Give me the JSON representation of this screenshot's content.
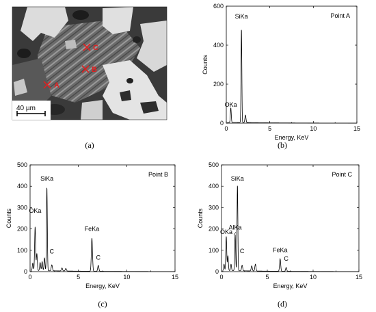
{
  "panel_labels": [
    "(a)",
    "(b)",
    "(c)",
    "(d)"
  ],
  "micrograph": {
    "points": [
      {
        "label": "A",
        "color": "#e02020"
      },
      {
        "label": "B",
        "color": "#e02020"
      },
      {
        "label": "C",
        "color": "#e02020"
      }
    ],
    "scale_bar_label": "40 µm"
  },
  "chart_data": [
    {
      "type": "line",
      "title": "",
      "annotation": "Point A",
      "xlabel": "Energy, KeV",
      "ylabel": "Counts",
      "xlim": [
        0,
        15
      ],
      "ylim": [
        0,
        600
      ],
      "xticks": [
        0,
        5,
        10,
        15
      ],
      "yticks": [
        0,
        200,
        400,
        600
      ],
      "grid": false,
      "color": "#000000",
      "peaks": [
        {
          "x": 0.52,
          "y": 75,
          "w": 0.05
        },
        {
          "x": 1.74,
          "y": 480,
          "w": 0.045
        },
        {
          "x": 2.2,
          "y": 38,
          "w": 0.06
        }
      ],
      "baseline": 4,
      "peak_labels": [
        {
          "text": "OKa",
          "x": 0.52,
          "y": 78
        },
        {
          "text": "SiKa",
          "x": 1.74,
          "y": 530
        }
      ]
    },
    {
      "type": "line",
      "title": "",
      "annotation": "Point B",
      "xlabel": "Energy, KeV",
      "ylabel": "Counts",
      "xlim": [
        0,
        15
      ],
      "ylim": [
        0,
        500
      ],
      "xticks": [
        0,
        5,
        10,
        15
      ],
      "yticks": [
        0,
        100,
        200,
        300,
        400,
        500
      ],
      "grid": false,
      "color": "#000000",
      "peaks": [
        {
          "x": 0.28,
          "y": 35,
          "w": 0.05
        },
        {
          "x": 0.52,
          "y": 205,
          "w": 0.05
        },
        {
          "x": 0.7,
          "y": 80,
          "w": 0.05
        },
        {
          "x": 1.04,
          "y": 38,
          "w": 0.05
        },
        {
          "x": 1.25,
          "y": 42,
          "w": 0.05
        },
        {
          "x": 1.49,
          "y": 60,
          "w": 0.05
        },
        {
          "x": 1.74,
          "y": 392,
          "w": 0.045
        },
        {
          "x": 2.25,
          "y": 28,
          "w": 0.06
        },
        {
          "x": 3.3,
          "y": 14,
          "w": 0.06
        },
        {
          "x": 3.7,
          "y": 12,
          "w": 0.06
        },
        {
          "x": 6.4,
          "y": 155,
          "w": 0.06
        },
        {
          "x": 7.06,
          "y": 28,
          "w": 0.06
        }
      ],
      "baseline": 5,
      "peak_labels": [
        {
          "text": "OKa",
          "x": 0.52,
          "y": 270
        },
        {
          "text": "SiKa",
          "x": 1.74,
          "y": 420
        },
        {
          "text": "FeKa",
          "x": 6.4,
          "y": 185
        },
        {
          "text": "C",
          "x": 2.25,
          "y": 78
        },
        {
          "text": "C",
          "x": 7.06,
          "y": 50
        }
      ]
    },
    {
      "type": "line",
      "title": "",
      "annotation": "Point C",
      "xlabel": "Energy, KeV",
      "ylabel": "Counts",
      "xlim": [
        0,
        15
      ],
      "ylim": [
        0,
        500
      ],
      "xticks": [
        0,
        5,
        10,
        15
      ],
      "yticks": [
        0,
        100,
        200,
        300,
        400,
        500
      ],
      "grid": false,
      "color": "#000000",
      "peaks": [
        {
          "x": 0.28,
          "y": 30,
          "w": 0.05
        },
        {
          "x": 0.52,
          "y": 160,
          "w": 0.05
        },
        {
          "x": 0.7,
          "y": 70,
          "w": 0.05
        },
        {
          "x": 1.04,
          "y": 30,
          "w": 0.05
        },
        {
          "x": 1.49,
          "y": 170,
          "w": 0.05
        },
        {
          "x": 1.74,
          "y": 402,
          "w": 0.045
        },
        {
          "x": 2.25,
          "y": 26,
          "w": 0.06
        },
        {
          "x": 3.3,
          "y": 24,
          "w": 0.06
        },
        {
          "x": 3.7,
          "y": 32,
          "w": 0.06
        },
        {
          "x": 6.4,
          "y": 58,
          "w": 0.06
        },
        {
          "x": 7.06,
          "y": 18,
          "w": 0.06
        }
      ],
      "baseline": 5,
      "peak_labels": [
        {
          "text": "OKa",
          "x": 0.52,
          "y": 170
        },
        {
          "text": "SiKa",
          "x": 1.74,
          "y": 420
        },
        {
          "text": "AlKa",
          "x": 1.49,
          "y": 190
        },
        {
          "text": "FeKa",
          "x": 6.4,
          "y": 85
        },
        {
          "text": "C",
          "x": 2.25,
          "y": 80
        },
        {
          "text": "C",
          "x": 7.06,
          "y": 45
        }
      ]
    }
  ]
}
